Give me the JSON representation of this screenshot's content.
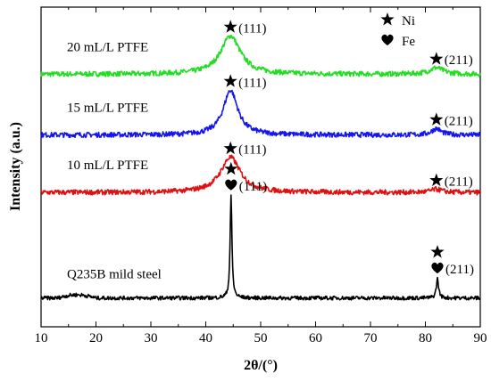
{
  "chart_data": {
    "type": "line",
    "xlabel": "2θ/(°)",
    "ylabel": "Intensity (a.u.)",
    "xlim": [
      10,
      90
    ],
    "x_ticks": [
      10,
      20,
      30,
      40,
      50,
      60,
      70,
      80,
      90
    ],
    "y_ticks_shown": false,
    "grid": false,
    "legend": {
      "placement": "top-right",
      "entries": [
        {
          "symbol": "star",
          "label": "Ni"
        },
        {
          "symbol": "heart",
          "label": "Fe"
        }
      ]
    },
    "series": [
      {
        "name": "20 mL/L PTFE",
        "color": "#22dd22",
        "baseline": 0.79,
        "peaks": [
          {
            "x": 44.5,
            "height": 0.12,
            "width": 2.2,
            "label": "(111)",
            "markers": [
              "star"
            ]
          },
          {
            "x": 82.0,
            "height": 0.02,
            "width": 1.5,
            "label": "(211)",
            "markers": [
              "star"
            ]
          }
        ]
      },
      {
        "name": "15 mL/L PTFE",
        "color": "#1515ee",
        "baseline": 0.6,
        "peaks": [
          {
            "x": 44.5,
            "height": 0.14,
            "width": 1.6,
            "label": "(111)",
            "markers": [
              "star"
            ]
          },
          {
            "x": 82.0,
            "height": 0.02,
            "width": 1.0,
            "label": "(211)",
            "markers": [
              "star"
            ]
          }
        ]
      },
      {
        "name": "10 mL/L PTFE",
        "color": "#dd1111",
        "baseline": 0.42,
        "peaks": [
          {
            "x": 44.5,
            "height": 0.11,
            "width": 2.2,
            "label": "(111)",
            "markers": [
              "star"
            ]
          },
          {
            "x": 82.0,
            "height": 0.01,
            "width": 1.2,
            "label": "(211)",
            "markers": [
              "star"
            ]
          }
        ]
      },
      {
        "name": "Q235B mild steel",
        "color": "#000000",
        "baseline": 0.09,
        "peaks": [
          {
            "x": 44.6,
            "height": 0.32,
            "width": 0.2,
            "label": "(111)",
            "markers": [
              "star",
              "heart"
            ]
          },
          {
            "x": 82.2,
            "height": 0.06,
            "width": 0.25,
            "label": "(211)",
            "markers": [
              "star",
              "heart"
            ]
          }
        ]
      }
    ]
  },
  "colors": {
    "axis": "#000000",
    "background": "#ffffff"
  }
}
